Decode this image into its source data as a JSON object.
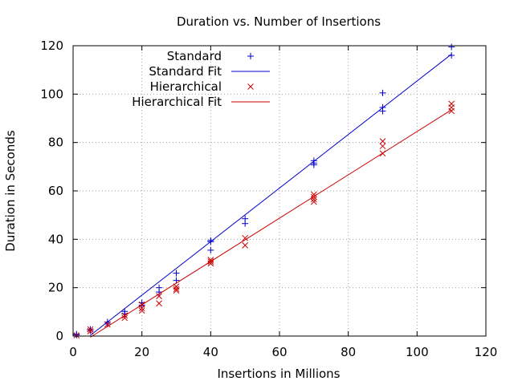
{
  "chart_data": {
    "type": "scatter",
    "title": "Duration vs. Number of Insertions",
    "xlabel": "Insertions in Millions",
    "ylabel": "Duration in Seconds",
    "xlim": [
      0,
      120
    ],
    "ylim": [
      0,
      120
    ],
    "x_ticks": [
      0,
      20,
      40,
      60,
      80,
      100,
      120
    ],
    "y_ticks": [
      0,
      20,
      40,
      60,
      80,
      100,
      120
    ],
    "grid": true,
    "legend_position": "top-left",
    "series": [
      {
        "name": "Standard",
        "kind": "points",
        "marker": "plus",
        "color": "#0000cc",
        "points": [
          [
            1,
            0.4
          ],
          [
            1,
            0.8
          ],
          [
            5,
            2.2
          ],
          [
            5,
            2.8
          ],
          [
            10,
            5.0
          ],
          [
            10,
            5.8
          ],
          [
            15,
            9.2
          ],
          [
            15,
            10.2
          ],
          [
            20,
            12.8
          ],
          [
            20,
            13.8
          ],
          [
            25,
            18.2
          ],
          [
            25,
            20.0
          ],
          [
            30,
            23.0
          ],
          [
            30,
            26.0
          ],
          [
            40,
            35.5
          ],
          [
            40,
            39.0
          ],
          [
            40,
            39.5
          ],
          [
            50,
            46.5
          ],
          [
            50,
            48.5
          ],
          [
            70,
            70.8
          ],
          [
            70,
            71.5
          ],
          [
            70,
            72.5
          ],
          [
            90,
            93.0
          ],
          [
            90,
            94.5
          ],
          [
            90,
            100.5
          ],
          [
            110,
            116.0
          ],
          [
            110,
            119.5
          ]
        ]
      },
      {
        "name": "Standard Fit",
        "kind": "line",
        "color": "#0000cc",
        "x": [
          5,
          110
        ],
        "y": [
          0.3,
          116.5
        ]
      },
      {
        "name": "Hierarchical",
        "kind": "points",
        "marker": "cross",
        "color": "#cc0000",
        "points": [
          [
            1,
            0.3
          ],
          [
            5,
            2.0
          ],
          [
            5,
            2.8
          ],
          [
            10,
            4.8
          ],
          [
            15,
            7.5
          ],
          [
            15,
            8.5
          ],
          [
            20,
            10.5
          ],
          [
            20,
            11.5
          ],
          [
            20,
            13.0
          ],
          [
            25,
            13.5
          ],
          [
            25,
            16.5
          ],
          [
            30,
            18.8
          ],
          [
            30,
            19.5
          ],
          [
            30,
            20.5
          ],
          [
            40,
            30.0
          ],
          [
            40,
            30.8
          ],
          [
            40,
            31.5
          ],
          [
            50,
            37.5
          ],
          [
            50,
            40.5
          ],
          [
            70,
            55.5
          ],
          [
            70,
            56.5
          ],
          [
            70,
            57.5
          ],
          [
            70,
            58.5
          ],
          [
            90,
            75.5
          ],
          [
            90,
            78.5
          ],
          [
            90,
            80.5
          ],
          [
            110,
            93.0
          ],
          [
            110,
            94.5
          ],
          [
            110,
            96.0
          ]
        ]
      },
      {
        "name": "Hierarchical Fit",
        "kind": "line",
        "color": "#cc0000",
        "x": [
          5,
          110
        ],
        "y": [
          -0.5,
          93.5
        ]
      }
    ]
  }
}
